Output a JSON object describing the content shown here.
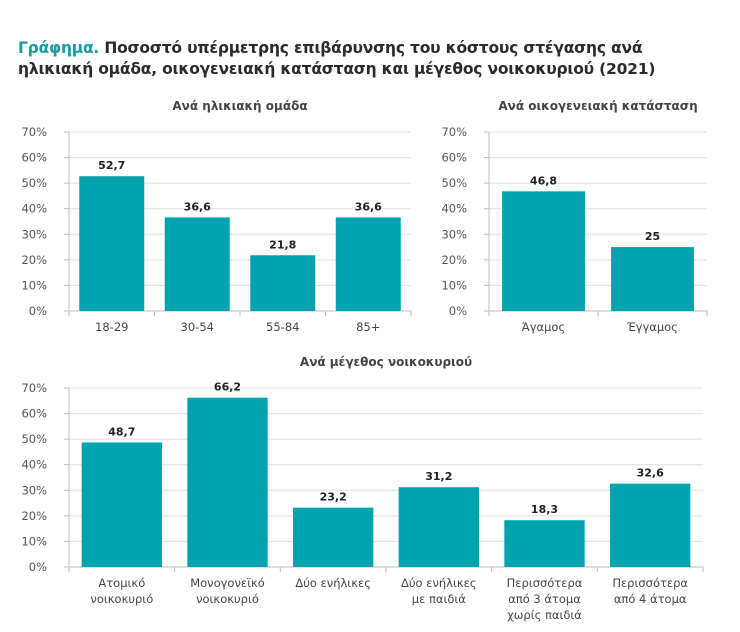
{
  "figure_title": {
    "prefix": "Γράφημα.",
    "text": " Ποσοστό υπέρμετρης επιβάρυνσης του κόστους στέγασης ανά ηλικιακή ομάδα, οικογενειακή κατάσταση και μέγεθος νοικοκυριού (2021)"
  },
  "colors": {
    "bar": "#00a3ae",
    "accent": "#1a9aa6",
    "grid": "#dddddd",
    "axis": "#bdbdbd"
  },
  "chart_data": [
    {
      "id": "age",
      "type": "bar",
      "title": "Ανά ηλικιακή ομάδα",
      "xlabel": "",
      "ylabel": "",
      "categories": [
        [
          "18-29"
        ],
        [
          "30-54"
        ],
        [
          "55-84"
        ],
        [
          "85+"
        ]
      ],
      "values": [
        52.7,
        36.6,
        21.8,
        36.6
      ],
      "value_labels": [
        "52,7",
        "36,6",
        "21,8",
        "36,6"
      ],
      "ylim": [
        0,
        70
      ],
      "yticks": [
        0,
        10,
        20,
        30,
        40,
        50,
        60,
        70
      ],
      "ytick_labels": [
        "0%",
        "10%",
        "20%",
        "30%",
        "40%",
        "50%",
        "60%",
        "70%"
      ],
      "grid": true,
      "legend": "none"
    },
    {
      "id": "marital",
      "type": "bar",
      "title": "Ανά οικογενειακή κατάσταση",
      "xlabel": "",
      "ylabel": "",
      "categories": [
        [
          "Άγαμος"
        ],
        [
          "Έγγαμος"
        ]
      ],
      "values": [
        46.8,
        25
      ],
      "value_labels": [
        "46,8",
        "25"
      ],
      "ylim": [
        0,
        70
      ],
      "yticks": [
        0,
        10,
        20,
        30,
        40,
        50,
        60,
        70
      ],
      "ytick_labels": [
        "0%",
        "10%",
        "20%",
        "30%",
        "40%",
        "50%",
        "60%",
        "70%"
      ],
      "grid": true,
      "legend": "none"
    },
    {
      "id": "household",
      "type": "bar",
      "title": "Ανά μέγεθος νοικοκυριού",
      "xlabel": "",
      "ylabel": "",
      "categories": [
        [
          "Ατομικό",
          "νοικοκυριό"
        ],
        [
          "Μονογονεϊκό",
          "νοικοκυριό"
        ],
        [
          "Δύο ενήλικες"
        ],
        [
          "Δύο ενήλικες",
          "με παιδιά"
        ],
        [
          "Περισσότερα",
          "από 3 άτομα",
          "χωρίς παιδιά"
        ],
        [
          "Περισσότερα",
          "από 4 άτομα"
        ]
      ],
      "values": [
        48.7,
        66.2,
        23.2,
        31.2,
        18.3,
        32.6
      ],
      "value_labels": [
        "48,7",
        "66,2",
        "23,2",
        "31,2",
        "18,3",
        "32,6"
      ],
      "ylim": [
        0,
        70
      ],
      "yticks": [
        0,
        10,
        20,
        30,
        40,
        50,
        60,
        70
      ],
      "ytick_labels": [
        "0%",
        "10%",
        "20%",
        "30%",
        "40%",
        "50%",
        "60%",
        "70%"
      ],
      "grid": true,
      "legend": "none"
    }
  ]
}
